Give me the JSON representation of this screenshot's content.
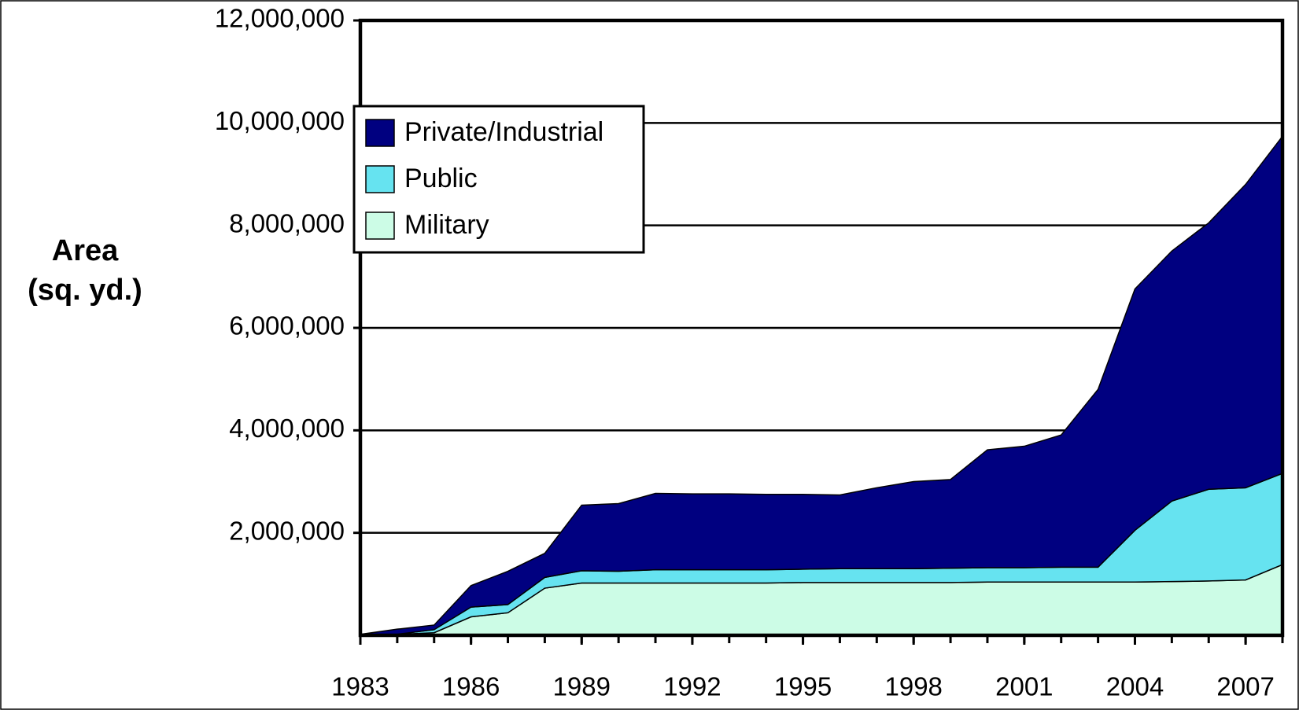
{
  "chart_data": {
    "type": "stacked_area",
    "y_label": [
      "Area",
      "(sq. yd.)"
    ],
    "x": [
      1983,
      1984,
      1985,
      1986,
      1987,
      1988,
      1989,
      1990,
      1991,
      1992,
      1993,
      1994,
      1995,
      1996,
      1997,
      1998,
      1999,
      2000,
      2001,
      2002,
      2003,
      2004,
      2005,
      2006,
      2007,
      2008
    ],
    "xlim": [
      1983,
      2008
    ],
    "xticks": [
      1983,
      1986,
      1989,
      1992,
      1995,
      1998,
      2001,
      2004,
      2007
    ],
    "ylim": [
      0,
      12000000
    ],
    "yticks": [
      {
        "value": 2000000,
        "label": "2,000,000"
      },
      {
        "value": 4000000,
        "label": "4,000,000"
      },
      {
        "value": 6000000,
        "label": "6,000,000"
      },
      {
        "value": 8000000,
        "label": "8,000,000"
      },
      {
        "value": 10000000,
        "label": "10,000,000"
      },
      {
        "value": 12000000,
        "label": "12,000,000"
      }
    ],
    "grid": true,
    "legend": "upper left",
    "series": [
      {
        "name": "Private/Industrial",
        "color": "#000080",
        "values": [
          20000,
          100000,
          90000,
          420000,
          650000,
          470000,
          1280000,
          1320000,
          1490000,
          1480000,
          1480000,
          1470000,
          1460000,
          1440000,
          1580000,
          1700000,
          1730000,
          2300000,
          2370000,
          2580000,
          3470000,
          4710000,
          4880000,
          5200000,
          5920000,
          6580000
        ]
      },
      {
        "name": "Public",
        "color": "#66e3f0",
        "values": [
          0,
          0,
          60000,
          190000,
          160000,
          210000,
          240000,
          230000,
          260000,
          260000,
          260000,
          260000,
          260000,
          270000,
          270000,
          270000,
          280000,
          280000,
          280000,
          290000,
          290000,
          1010000,
          1570000,
          1790000,
          1800000,
          1780000
        ]
      },
      {
        "name": "Military",
        "color": "#ccfce6",
        "values": [
          0,
          20000,
          50000,
          360000,
          440000,
          920000,
          1020000,
          1020000,
          1020000,
          1020000,
          1020000,
          1020000,
          1030000,
          1030000,
          1030000,
          1030000,
          1030000,
          1040000,
          1040000,
          1040000,
          1040000,
          1040000,
          1050000,
          1060000,
          1080000,
          1380000
        ]
      }
    ]
  }
}
